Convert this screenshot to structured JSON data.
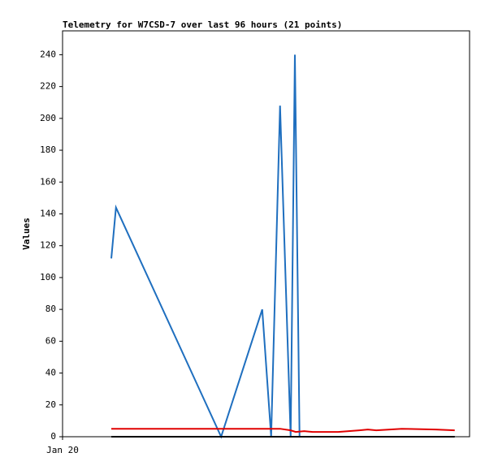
{
  "chart_data": {
    "type": "line",
    "title": "Telemetry for W7CSD-7 over last 96 hours (21 points)",
    "y_label": "Values",
    "xlim": [
      0,
      96
    ],
    "xticks": [
      {
        "value": 0,
        "label": "Jan 20"
      }
    ],
    "ylim": [
      0,
      255
    ],
    "yticks": [
      0,
      20,
      40,
      60,
      80,
      100,
      120,
      140,
      160,
      180,
      200,
      220,
      240
    ],
    "grid": false,
    "series": [
      {
        "color": "#1f6fbf",
        "x": [
          11.5,
          12.6,
          37.4,
          47.1,
          49.2,
          51.3,
          53.8,
          54.8,
          55.9
        ],
        "values": [
          112,
          144,
          0,
          80,
          0,
          208,
          0,
          240,
          0
        ]
      },
      {
        "color": "#e00000",
        "x": [
          11.5,
          49,
          51.3,
          53.8,
          55,
          57,
          59,
          65,
          70,
          72,
          74,
          80,
          88,
          92.5
        ],
        "values": [
          5,
          5,
          5,
          4,
          3,
          3.5,
          3,
          3,
          4,
          4.5,
          4,
          5,
          4.5,
          4
        ]
      },
      {
        "color": "#000000",
        "x": [
          11.5,
          92.5
        ],
        "values": [
          0,
          0
        ]
      }
    ]
  }
}
